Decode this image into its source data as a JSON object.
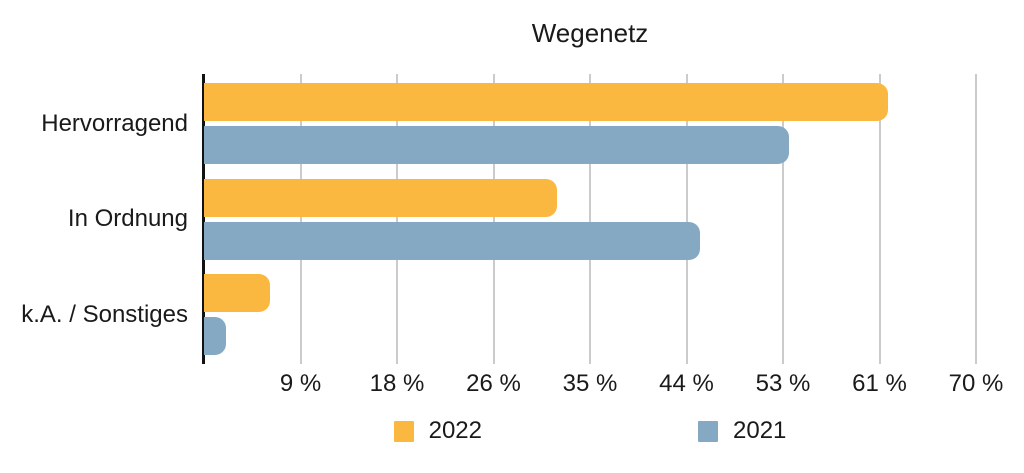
{
  "chart_data": {
    "type": "bar",
    "orientation": "horizontal",
    "title": "Wegenetz",
    "categories": [
      "Hervorragend",
      "In Ordnung",
      "k.A. / Sonstiges"
    ],
    "series": [
      {
        "name": "2022",
        "color": "#FAB840",
        "values": [
          62,
          32,
          6
        ]
      },
      {
        "name": "2021",
        "color": "#86A9C3",
        "values": [
          53,
          45,
          2
        ]
      }
    ],
    "xlim": [
      0,
      70
    ],
    "x_ticks": [
      {
        "label": "9 %",
        "value": 8.75
      },
      {
        "label": "18 %",
        "value": 17.5
      },
      {
        "label": "26 %",
        "value": 26.25
      },
      {
        "label": "35 %",
        "value": 35
      },
      {
        "label": "44 %",
        "value": 43.75
      },
      {
        "label": "53 %",
        "value": 52.5
      },
      {
        "label": "61 %",
        "value": 61.25
      },
      {
        "label": "70 %",
        "value": 70
      }
    ],
    "unit": "%",
    "grid": true,
    "legend_position": "bottom"
  },
  "colors": {
    "axis_line": "#121212",
    "gridline": "#cbcbcb",
    "text": "#1a1a1a",
    "background": "#ffffff"
  }
}
